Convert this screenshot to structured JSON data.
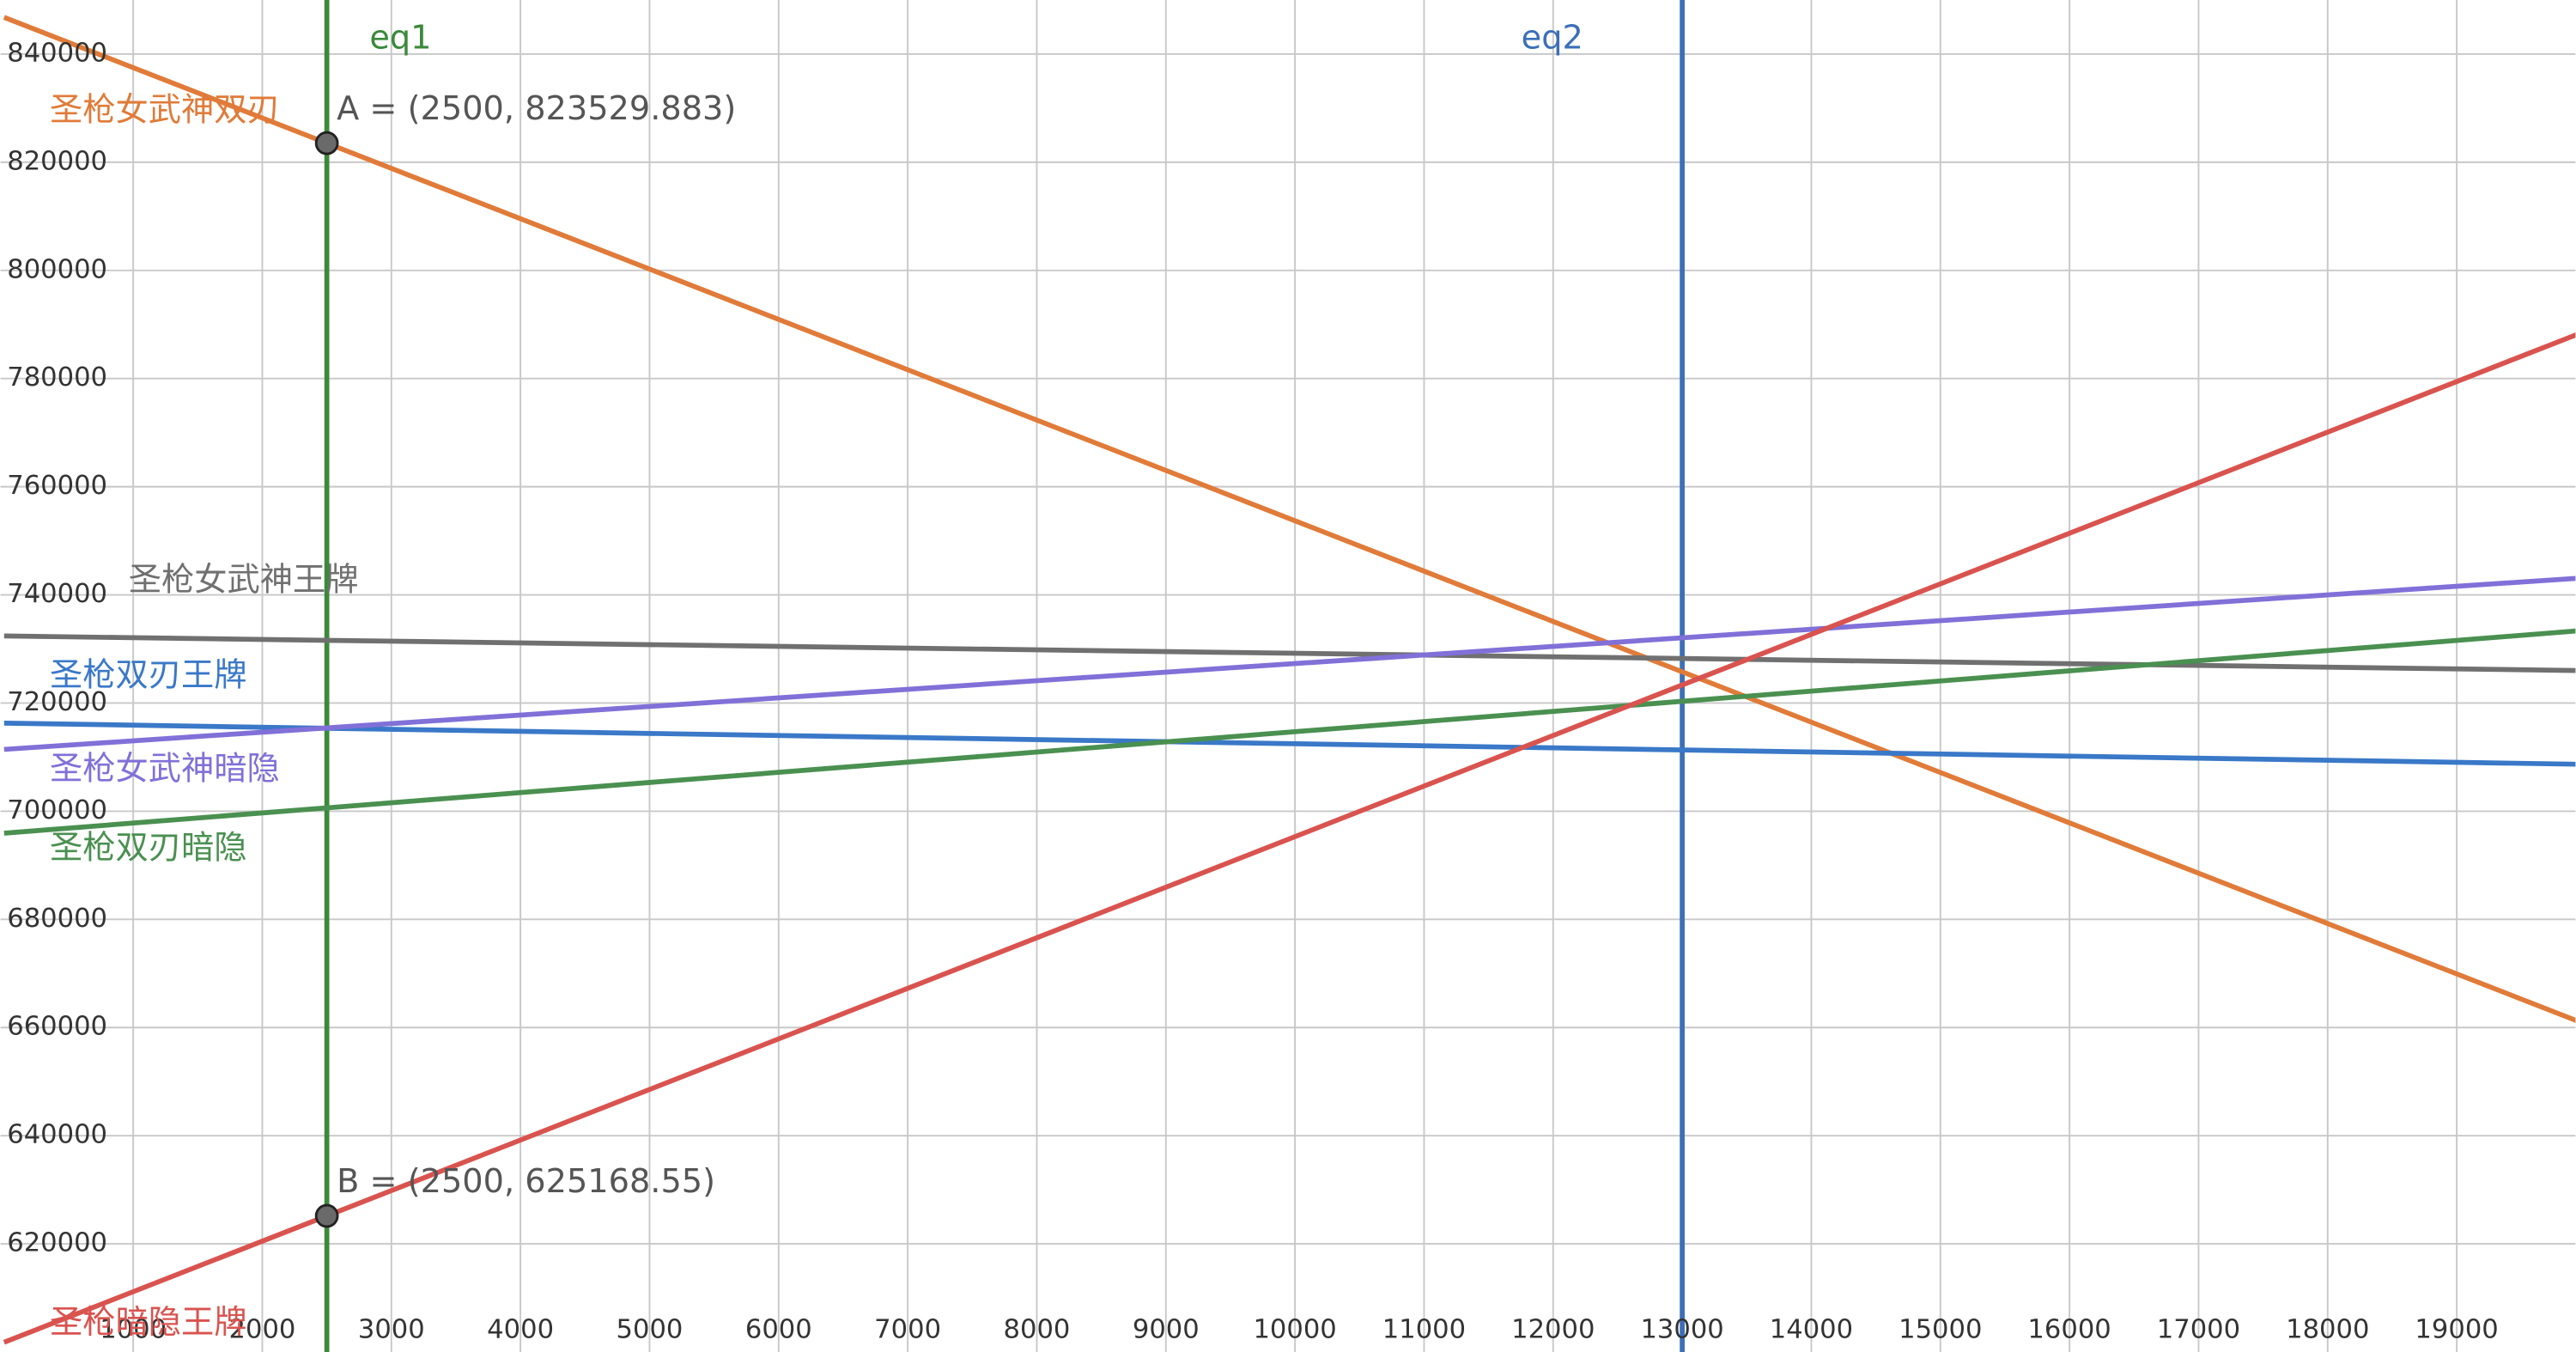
{
  "chart_data": {
    "type": "line",
    "x": [
      0,
      20000
    ],
    "xlim": [
      -28,
      19920
    ],
    "ylim": [
      600000,
      850000
    ],
    "xticks": [
      1000,
      2000,
      3000,
      4000,
      5000,
      6000,
      7000,
      8000,
      9000,
      10000,
      11000,
      12000,
      13000,
      14000,
      15000,
      16000,
      17000,
      18000,
      19000
    ],
    "yticks": [
      620000,
      640000,
      660000,
      680000,
      700000,
      720000,
      740000,
      760000,
      780000,
      800000,
      820000,
      840000
    ],
    "grid": true,
    "series": [
      {
        "name": "圣枪女武神双刃",
        "color": "#e07b39",
        "values": [
          846800,
          660605
        ]
      },
      {
        "name": "圣枪女武神王牌",
        "color": "#707070",
        "values": [
          732400,
          725994
        ]
      },
      {
        "name": "圣枪双刃王牌",
        "color": "#3a78c8",
        "values": [
          716290,
          708660
        ]
      },
      {
        "name": "圣枪女武神暗隐",
        "color": "#8070d8",
        "values": [
          711430,
          743170
        ]
      },
      {
        "name": "圣枪双刃暗隐",
        "color": "#4a9050",
        "values": [
          695930,
          733460
        ]
      },
      {
        "name": "圣枪暗隐王牌",
        "color": "#d9534f",
        "values": [
          601794,
          788794
        ]
      }
    ],
    "vlines": [
      {
        "name": "eq1",
        "x": 2500,
        "color": "#3a8a3a"
      },
      {
        "name": "eq2",
        "x": 13000,
        "color": "#3b6fb8"
      }
    ],
    "points": [
      {
        "x": 2500,
        "y": 823529.883,
        "label": "A = (2500, 823529.883)"
      },
      {
        "x": 2500,
        "y": 625168.55,
        "label": "B = (2500, 625168.55)"
      }
    ]
  }
}
